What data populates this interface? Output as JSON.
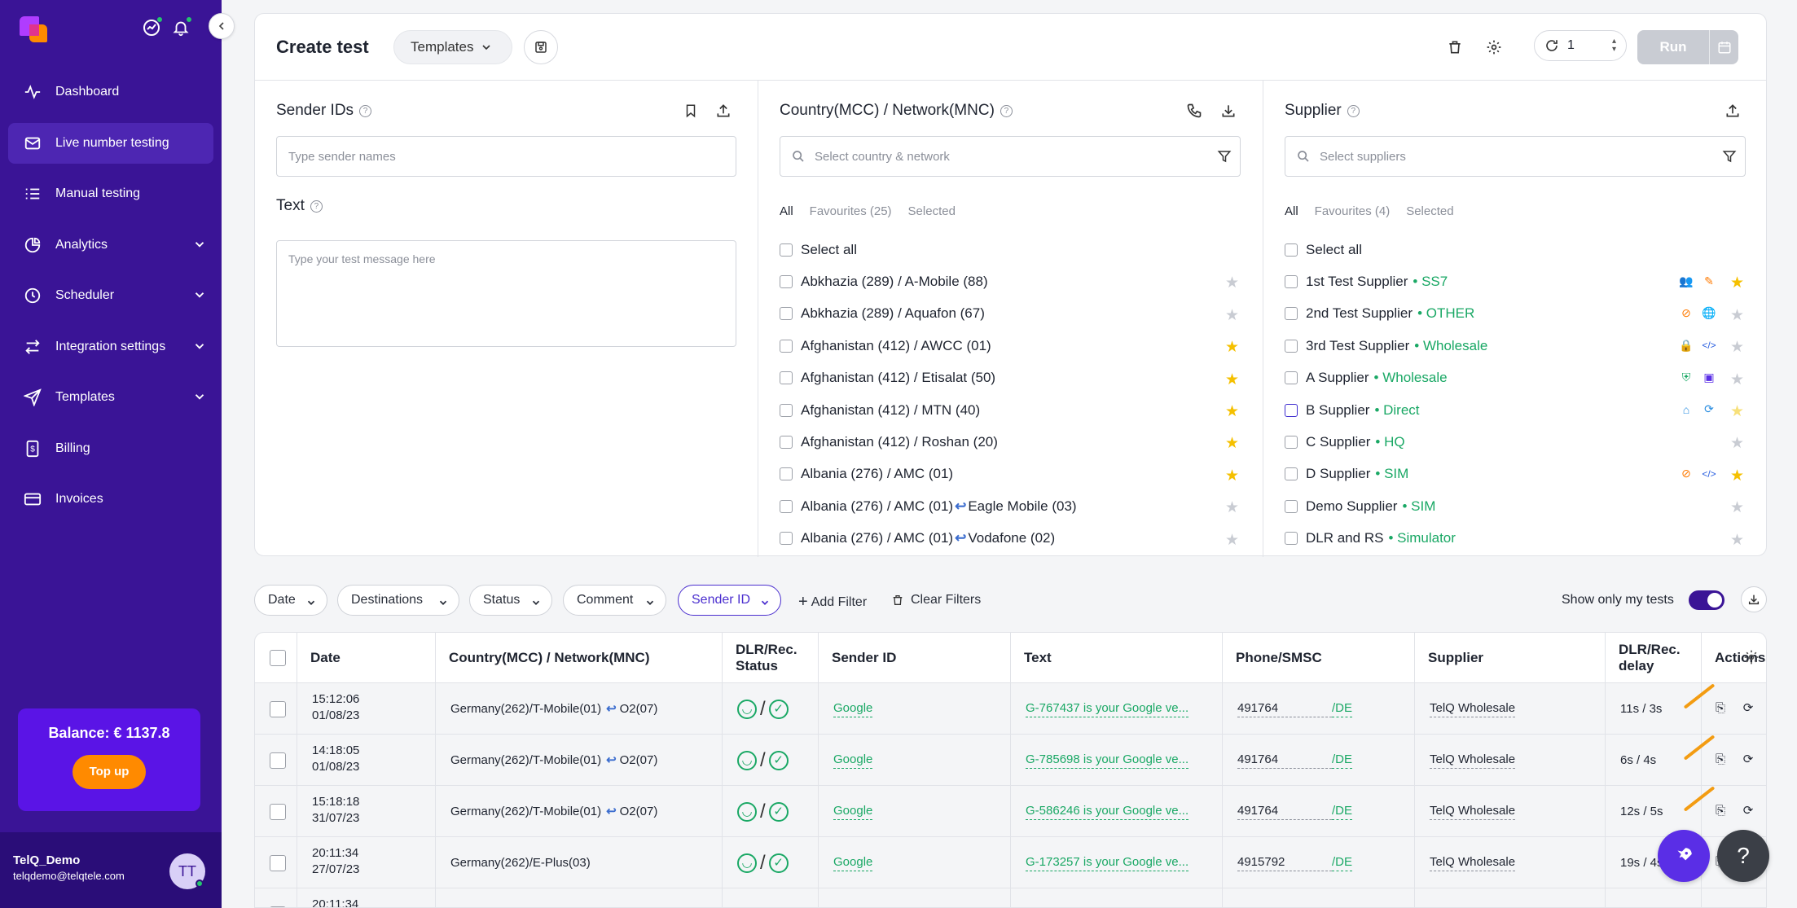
{
  "sidebar": {
    "items": [
      {
        "label": "Dashboard",
        "icon": "activity-icon"
      },
      {
        "label": "Live number testing",
        "icon": "mail-icon"
      },
      {
        "label": "Manual testing",
        "icon": "list-icon"
      },
      {
        "label": "Analytics",
        "icon": "pie-chart-icon"
      },
      {
        "label": "Scheduler",
        "icon": "clock-icon"
      },
      {
        "label": "Integration settings",
        "icon": "swap-icon"
      },
      {
        "label": "Templates",
        "icon": "send-icon"
      },
      {
        "label": "Billing",
        "icon": "dollar-icon"
      },
      {
        "label": "Invoices",
        "icon": "card-icon"
      }
    ],
    "balance": "Balance: € 1137.8",
    "topup": "Top up",
    "user_name": "TelQ_Demo",
    "user_email": "telqdemo@telqtele.com",
    "avatar_initials": "TT"
  },
  "header": {
    "title": "Create test",
    "templates": "Templates",
    "repeat": "1",
    "run": "Run"
  },
  "sender": {
    "title": "Sender IDs",
    "placeholder": "Type sender names",
    "text_title": "Text",
    "text_placeholder": "Type your test message here"
  },
  "country": {
    "title": "Country(MCC) / Network(MNC)",
    "placeholder": "Select country & network",
    "tabs": [
      "All",
      "Favourites (25)",
      "Selected"
    ],
    "select_all": "Select all",
    "items": [
      {
        "a": "Abkhazia (289) / A-Mobile (88)",
        "b": "",
        "fav": false
      },
      {
        "a": "Abkhazia (289) / Aquafon (67)",
        "b": "",
        "fav": false
      },
      {
        "a": "Afghanistan (412) / AWCC (01)",
        "b": "",
        "fav": true
      },
      {
        "a": "Afghanistan (412) / Etisalat (50)",
        "b": "",
        "fav": true
      },
      {
        "a": "Afghanistan (412) / MTN (40)",
        "b": "",
        "fav": true
      },
      {
        "a": "Afghanistan (412) / Roshan (20)",
        "b": "",
        "fav": true
      },
      {
        "a": "Albania (276) / AMC (01)",
        "b": "",
        "fav": true
      },
      {
        "a": "Albania (276) / AMC (01)",
        "b": "Eagle Mobile (03)",
        "fav": false
      },
      {
        "a": "Albania (276) / AMC (01)",
        "b": "Vodafone (02)",
        "fav": false
      }
    ]
  },
  "supplier": {
    "title": "Supplier",
    "placeholder": "Select suppliers",
    "tabs": [
      "All",
      "Favourites (4)",
      "Selected"
    ],
    "select_all": "Select all",
    "items": [
      {
        "name": "1st Test Supplier",
        "type": "SS7",
        "fav": "on"
      },
      {
        "name": "2nd Test Supplier",
        "type": "OTHER",
        "fav": "off"
      },
      {
        "name": "3rd Test Supplier",
        "type": "Wholesale",
        "fav": "off"
      },
      {
        "name": "A Supplier",
        "type": "Wholesale",
        "fav": "off"
      },
      {
        "name": "B Supplier",
        "type": "Direct",
        "fav": "light"
      },
      {
        "name": "C Supplier",
        "type": "HQ",
        "fav": "off"
      },
      {
        "name": "D Supplier",
        "type": "SIM",
        "fav": "on"
      },
      {
        "name": "Demo Supplier",
        "type": "SIM",
        "fav": "off"
      },
      {
        "name": "DLR and RS",
        "type": "Simulator",
        "fav": "off"
      }
    ]
  },
  "filters": {
    "chips": [
      "Date",
      "Destinations",
      "Status",
      "Comment",
      "Sender ID"
    ],
    "add": "Add Filter",
    "clear": "Clear Filters",
    "show_mine": "Show only my tests"
  },
  "table": {
    "headers": [
      "Date",
      "Country(MCC) / Network(MNC)",
      "DLR/Rec. Status",
      "Sender ID",
      "Text",
      "Phone/SMSC",
      "Supplier",
      "DLR/Rec. delay",
      "Actions"
    ],
    "rows": [
      {
        "time": "15:12:06",
        "date": "01/08/23",
        "net": "Germany(262)/T-Mobile(01)",
        "net2": "O2(07)",
        "sender": "Google",
        "text": "G-767437 is your Google ve...",
        "phone": "491764",
        "smsc": "/DE",
        "supplier": "TelQ Wholesale",
        "delay": "11s / 3s"
      },
      {
        "time": "14:18:05",
        "date": "01/08/23",
        "net": "Germany(262)/T-Mobile(01)",
        "net2": "O2(07)",
        "sender": "Google",
        "text": "G-785698 is your Google ve...",
        "phone": "491764",
        "smsc": "/DE",
        "supplier": "TelQ Wholesale",
        "delay": "6s / 4s"
      },
      {
        "time": "15:18:18",
        "date": "31/07/23",
        "net": "Germany(262)/T-Mobile(01)",
        "net2": "O2(07)",
        "sender": "Google",
        "text": "G-586246 is your Google ve...",
        "phone": "491764",
        "smsc": "/DE",
        "supplier": "TelQ Wholesale",
        "delay": "12s / 5s"
      },
      {
        "time": "20:11:34",
        "date": "27/07/23",
        "net": "Germany(262)/E-Plus(03)",
        "net2": "",
        "sender": "Google",
        "text": "G-173257 is your Google ve...",
        "phone": "4915792",
        "smsc": "/DE",
        "supplier": "TelQ Wholesale",
        "delay": "19s / 4s"
      },
      {
        "time": "20:11:34",
        "date": "",
        "net": "",
        "net2": "",
        "sender": "",
        "text": "",
        "phone": "",
        "smsc": "",
        "supplier": "",
        "delay": ""
      }
    ]
  },
  "colors": {
    "sidebar": "#3a1496",
    "accent": "#5a14e6",
    "success": "#1aa865",
    "star": "#f5c000",
    "topup": "#ff8a00"
  }
}
